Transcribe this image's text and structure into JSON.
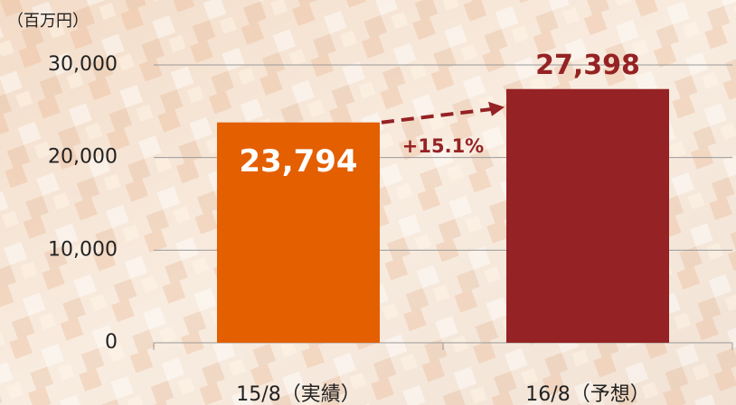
{
  "chart_data": {
    "type": "bar",
    "unit_label": "（百万円）",
    "categories": [
      "15/8（実績）",
      "16/8（予想）"
    ],
    "values": [
      23794,
      27398
    ],
    "value_labels": [
      "23,794",
      "27,398"
    ],
    "colors": [
      "#e35f00",
      "#952224"
    ],
    "annotation": "+15.1%",
    "ylim": [
      0,
      30000
    ],
    "yticks": [
      0,
      {
        "value": 10000,
        "label": "10,000"
      },
      {
        "value": 20000,
        "label": "20,000"
      },
      {
        "value": 30000,
        "label": "30,000"
      }
    ],
    "grid": true
  }
}
